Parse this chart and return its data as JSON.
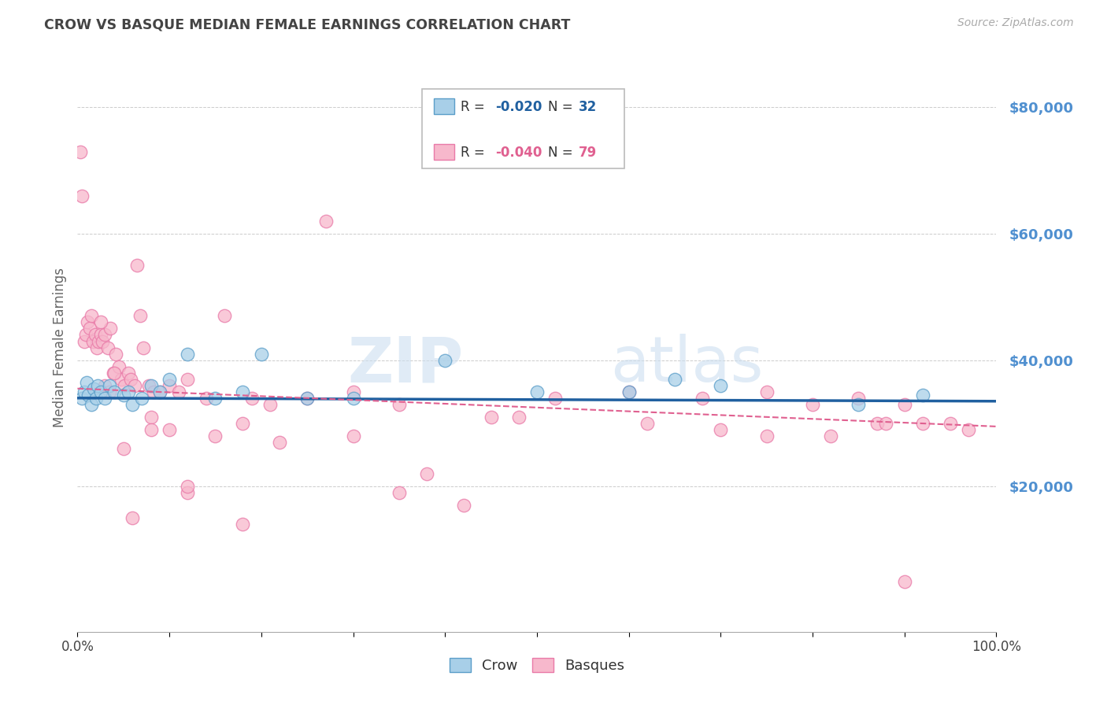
{
  "title": "CROW VS BASQUE MEDIAN FEMALE EARNINGS CORRELATION CHART",
  "source": "Source: ZipAtlas.com",
  "ylabel": "Median Female Earnings",
  "legend_crow": "Crow",
  "legend_basques": "Basques",
  "crow_R": "-0.020",
  "crow_N": "32",
  "basque_R": "-0.040",
  "basque_N": "79",
  "yticks": [
    20000,
    40000,
    60000,
    80000
  ],
  "ytick_labels": [
    "$20,000",
    "$40,000",
    "$60,000",
    "$80,000"
  ],
  "ymin": -3000,
  "ymax": 87000,
  "xmin": 0.0,
  "xmax": 1.0,
  "watermark_zip": "ZIP",
  "watermark_atlas": "atlas",
  "crow_color": "#a8cfe8",
  "crow_edge_color": "#5b9ec9",
  "basque_color": "#f7b8cc",
  "basque_edge_color": "#e97aa8",
  "crow_line_color": "#2060a0",
  "basque_line_color": "#e06090",
  "grid_color": "#cccccc",
  "title_color": "#444444",
  "ytick_color": "#5090d0",
  "crow_scatter_x": [
    0.005,
    0.007,
    0.01,
    0.012,
    0.015,
    0.018,
    0.02,
    0.022,
    0.025,
    0.03,
    0.035,
    0.04,
    0.05,
    0.055,
    0.06,
    0.07,
    0.08,
    0.09,
    0.1,
    0.12,
    0.15,
    0.18,
    0.2,
    0.25,
    0.3,
    0.4,
    0.5,
    0.6,
    0.65,
    0.7,
    0.85,
    0.92
  ],
  "crow_scatter_y": [
    34000,
    35000,
    36500,
    34500,
    33000,
    35500,
    34000,
    36000,
    35000,
    34000,
    36000,
    35000,
    34500,
    35000,
    33000,
    34000,
    36000,
    35000,
    37000,
    41000,
    34000,
    35000,
    41000,
    34000,
    34000,
    40000,
    35000,
    35000,
    37000,
    36000,
    33000,
    34500
  ],
  "basque_scatter_x": [
    0.003,
    0.005,
    0.007,
    0.009,
    0.011,
    0.013,
    0.015,
    0.017,
    0.019,
    0.021,
    0.023,
    0.025,
    0.027,
    0.03,
    0.033,
    0.036,
    0.039,
    0.042,
    0.045,
    0.048,
    0.051,
    0.055,
    0.058,
    0.062,
    0.065,
    0.068,
    0.072,
    0.078,
    0.083,
    0.09,
    0.1,
    0.11,
    0.12,
    0.14,
    0.16,
    0.19,
    0.21,
    0.25,
    0.27,
    0.3,
    0.35,
    0.38,
    0.42,
    0.48,
    0.52,
    0.6,
    0.68,
    0.75,
    0.8,
    0.85,
    0.87,
    0.9,
    0.92,
    0.95,
    0.97,
    0.025,
    0.03,
    0.035,
    0.04,
    0.06,
    0.08,
    0.1,
    0.12,
    0.15,
    0.18,
    0.22,
    0.3,
    0.45,
    0.62,
    0.7,
    0.75,
    0.82,
    0.9,
    0.05,
    0.08,
    0.12,
    0.18,
    0.35,
    0.88
  ],
  "basque_scatter_y": [
    73000,
    66000,
    43000,
    44000,
    46000,
    45000,
    47000,
    43000,
    44000,
    42000,
    43000,
    44000,
    43000,
    44000,
    42000,
    45000,
    38000,
    41000,
    39000,
    37000,
    36000,
    38000,
    37000,
    36000,
    55000,
    47000,
    42000,
    36000,
    35000,
    35000,
    36000,
    35000,
    37000,
    34000,
    47000,
    34000,
    33000,
    34000,
    62000,
    35000,
    33000,
    22000,
    17000,
    31000,
    34000,
    35000,
    34000,
    35000,
    33000,
    34000,
    30000,
    33000,
    30000,
    30000,
    29000,
    46000,
    36000,
    35000,
    38000,
    15000,
    31000,
    29000,
    19000,
    28000,
    30000,
    27000,
    28000,
    31000,
    30000,
    29000,
    28000,
    28000,
    5000,
    26000,
    29000,
    20000,
    14000,
    19000,
    30000
  ]
}
